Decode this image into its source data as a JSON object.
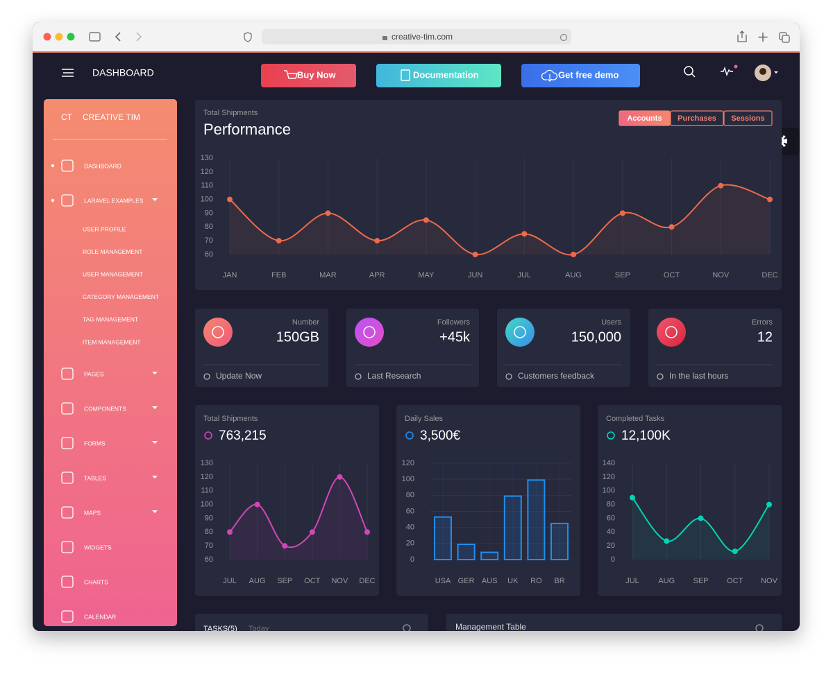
{
  "browser": {
    "url": "creative-tim.com"
  },
  "navbar": {
    "title": "DASHBOARD",
    "buttons": [
      "Buy Now",
      "Documentation",
      "Get free demo"
    ]
  },
  "sidebar": {
    "logo_short": "CT",
    "logo_text": "CREATIVE TIM",
    "items": [
      "DASHBOARD",
      "LARAVEL EXAMPLES",
      "PAGES",
      "COMPONENTS",
      "FORMS",
      "TABLES",
      "MAPS",
      "WIDGETS",
      "CHARTS",
      "CALENDAR"
    ],
    "subitems": [
      "USER PROFILE",
      "ROLE MANAGEMENT",
      "USER MANAGEMENT",
      "CATEGORY MANAGEMENT",
      "TAG MANAGEMENT",
      "ITEM MANAGEMENT"
    ]
  },
  "performance": {
    "subtitle": "Total Shipments",
    "title": "Performance",
    "tabs": [
      "Accounts",
      "Purchases",
      "Sessions"
    ],
    "chart_data": {
      "type": "line",
      "categories": [
        "JAN",
        "FEB",
        "MAR",
        "APR",
        "MAY",
        "JUN",
        "JUL",
        "AUG",
        "SEP",
        "OCT",
        "NOV",
        "DEC"
      ],
      "values": [
        100,
        70,
        90,
        70,
        85,
        60,
        75,
        60,
        90,
        80,
        110,
        100
      ],
      "color": "#ec6b4b",
      "ylim": [
        60,
        130
      ],
      "yticks": [
        60,
        70,
        80,
        90,
        100,
        110,
        120,
        130
      ],
      "grid": "x"
    }
  },
  "stats": [
    {
      "label": "Number",
      "value": "150GB",
      "footer": "Update Now"
    },
    {
      "label": "Followers",
      "value": "+45k",
      "footer": "Last Research"
    },
    {
      "label": "Users",
      "value": "150,000",
      "footer": "Customers feedback"
    },
    {
      "label": "Errors",
      "value": "12",
      "footer": "In the last hours"
    }
  ],
  "cards": [
    {
      "title": "Total Shipments",
      "value": "763,215",
      "chart_data": {
        "type": "line",
        "categories": [
          "JUL",
          "AUG",
          "SEP",
          "OCT",
          "NOV",
          "DEC"
        ],
        "values": [
          80,
          100,
          70,
          80,
          120,
          80
        ],
        "color": "#d048b6",
        "ylim": [
          60,
          130
        ],
        "yticks": [
          60,
          70,
          80,
          90,
          100,
          110,
          120,
          130
        ],
        "grid": "x"
      }
    },
    {
      "title": "Daily Sales",
      "value": "3,500€",
      "chart_data": {
        "type": "bar",
        "categories": [
          "USA",
          "GER",
          "AUS",
          "UK",
          "RO",
          "BR"
        ],
        "values": [
          53,
          19,
          9,
          79,
          99,
          45
        ],
        "color": "#1f8ef1",
        "ylim": [
          0,
          120
        ],
        "yticks": [
          0,
          20,
          40,
          60,
          80,
          100,
          120
        ],
        "grid": "y"
      }
    },
    {
      "title": "Completed Tasks",
      "value": "12,100K",
      "chart_data": {
        "type": "line",
        "categories": [
          "JUL",
          "AUG",
          "SEP",
          "OCT",
          "NOV"
        ],
        "values": [
          90,
          27,
          60,
          12,
          80
        ],
        "color": "#00d6b4",
        "ylim": [
          0,
          140
        ],
        "yticks": [
          0,
          20,
          40,
          60,
          80,
          100,
          120,
          140
        ],
        "grid": "x"
      }
    }
  ],
  "tasks": {
    "title": "TASKS(5)",
    "tab": "Today"
  },
  "management": {
    "title": "Management Table"
  }
}
